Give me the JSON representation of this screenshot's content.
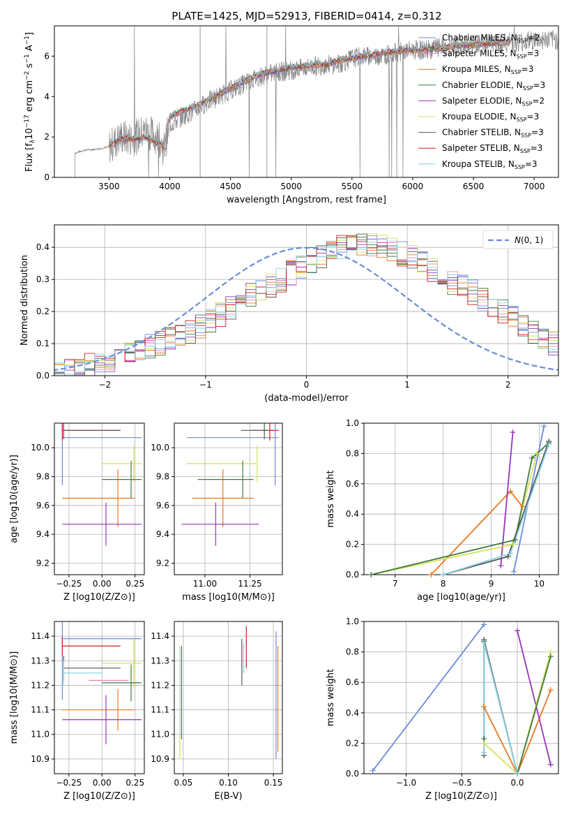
{
  "figure_title": "PLATE=1425, MJD=52913, FIBERID=0414, z=0.312",
  "colors": {
    "Chabrier MILES": "#6a8cd8",
    "Salpeter MILES": "#ee82b4",
    "Kroupa MILES": "#e87722",
    "Chabrier ELODIE": "#3f7a3f",
    "Salpeter ELODIE": "#9933bb",
    "Kroupa ELODIE": "#d6e05a",
    "Chabrier STELIB": "#555555",
    "Salpeter STELIB": "#cc1f1f",
    "Kroupa STELIB": "#88d4e6",
    "data": "#808080",
    "gaussian": "#6a8cd8"
  },
  "chart_data": [
    {
      "id": "spectrum",
      "type": "line",
      "title": "PLATE=1425, MJD=52913, FIBERID=0414, z=0.312",
      "xlabel": "wavelength [Angstrom, rest frame]",
      "ylabel": "Flux [f$_\\lambda$10$^{-17}$ erg cm$^{-2}$ s$^{-1}$ A$^{-1}$]",
      "ylabel_parts": {
        "a": "Flux [f",
        "b": "λ",
        "c": "10",
        "d": "−17",
        "e": " erg cm",
        "f": "−2",
        "g": " s",
        "h": "−1",
        "i": " A",
        "j": "−1",
        "k": "]"
      },
      "xlim": [
        3050,
        7200
      ],
      "ylim": [
        0,
        7.5
      ],
      "xticks": [
        3500,
        4000,
        4500,
        5000,
        5500,
        6000,
        6500,
        7000
      ],
      "yticks": [
        0,
        2,
        4,
        6
      ],
      "grid": false,
      "legend_position": "top-right",
      "legend": [
        {
          "label": "Chabrier MILES",
          "n": "2"
        },
        {
          "label": "Salpeter MILES",
          "n": "3"
        },
        {
          "label": "Kroupa MILES",
          "n": "3"
        },
        {
          "label": "Chabrier ELODIE",
          "n": "3"
        },
        {
          "label": "Salpeter ELODIE",
          "n": "2"
        },
        {
          "label": "Kroupa ELODIE",
          "n": "3"
        },
        {
          "label": "Chabrier STELIB",
          "n": "3"
        },
        {
          "label": "Salpeter STELIB",
          "n": "3"
        },
        {
          "label": "Kroupa STELIB",
          "n": "3"
        }
      ],
      "legend_n_prefix": "N",
      "legend_n_sub": "SSP",
      "data_x": [
        3220,
        3300,
        3400,
        3500,
        3600,
        3700,
        3800,
        3900,
        3950,
        4000,
        4100,
        4200,
        4300,
        4400,
        4500,
        4600,
        4700,
        4800,
        4900,
        5000,
        5100,
        5200,
        5300,
        5400,
        5500,
        5600,
        5700,
        5800,
        5900,
        6000,
        6100,
        6200,
        6300,
        6400,
        6500,
        6600,
        6700,
        6800,
        6900,
        7000,
        7100,
        7200
      ],
      "data_y": [
        1.2,
        1.35,
        1.4,
        1.5,
        2.0,
        1.9,
        2.3,
        2.0,
        1.4,
        2.6,
        3.0,
        3.3,
        3.7,
        4.0,
        4.3,
        4.6,
        4.9,
        5.1,
        5.2,
        5.3,
        5.4,
        5.5,
        5.6,
        5.6,
        5.9,
        6.0,
        6.0,
        6.1,
        6.2,
        6.3,
        6.3,
        6.4,
        6.4,
        6.5,
        6.6,
        6.6,
        6.6,
        6.7,
        6.7,
        6.8,
        6.8,
        6.8
      ],
      "model_x": [
        3500,
        3600,
        3700,
        3800,
        3900,
        3950,
        4000,
        4100,
        4200,
        4300,
        4400,
        4500,
        4600,
        4700,
        4800,
        4900,
        5000,
        5100,
        5200,
        5300,
        5400,
        5500,
        5600,
        5700,
        5800,
        5900,
        6000,
        6100,
        6200,
        6300,
        6400,
        6500,
        6600,
        6700,
        6800
      ],
      "model_y": [
        1.6,
        1.9,
        1.9,
        2.0,
        1.7,
        1.5,
        3.0,
        3.3,
        3.5,
        3.8,
        4.1,
        4.4,
        4.7,
        5.0,
        5.2,
        5.3,
        5.45,
        5.5,
        5.6,
        5.6,
        5.8,
        5.9,
        6.0,
        6.1,
        6.2,
        6.25,
        6.3,
        6.35,
        6.4,
        6.45,
        6.55,
        6.55,
        6.6,
        6.65,
        6.7
      ]
    },
    {
      "id": "residual_hist",
      "type": "line",
      "xlabel": "(data-model)/error",
      "ylabel": "Normed distribution",
      "xlim": [
        -2.5,
        2.5
      ],
      "ylim": [
        0,
        0.47
      ],
      "xticks": [
        -2,
        -1,
        0,
        1,
        2
      ],
      "yticks": [
        0.0,
        0.1,
        0.2,
        0.3,
        0.4
      ],
      "grid": true,
      "legend_position": "top-right",
      "legend": [
        {
          "label": "N(0,1)",
          "style": "dashed"
        }
      ],
      "bin_width": 0.1,
      "bin_start": -2.5,
      "hist_base": [
        0.01,
        0.02,
        0.02,
        0.03,
        0.04,
        0.05,
        0.06,
        0.07,
        0.08,
        0.09,
        0.1,
        0.11,
        0.12,
        0.14,
        0.15,
        0.17,
        0.19,
        0.21,
        0.23,
        0.25,
        0.27,
        0.28,
        0.3,
        0.32,
        0.34,
        0.36,
        0.37,
        0.38,
        0.4,
        0.4,
        0.41,
        0.41,
        0.4,
        0.39,
        0.38,
        0.37,
        0.35,
        0.33,
        0.31,
        0.29,
        0.28,
        0.26,
        0.24,
        0.22,
        0.2,
        0.18,
        0.16,
        0.14,
        0.12,
        0.1,
        0.09
      ],
      "hist_extra": [
        0.0,
        0.0,
        0.0,
        0.0,
        0.0,
        0.0,
        0.0,
        0.0,
        0.0,
        0.0,
        0.0,
        0.0,
        0.0,
        0.0,
        0.0,
        0.0,
        0.0,
        0.0,
        0.0,
        0.0,
        0.0,
        0.0,
        0.0,
        0.0,
        0.0,
        0.0,
        0.0,
        0.0,
        0.0,
        0.0,
        0.0,
        0.0,
        0.0,
        0.0,
        0.0,
        0.0,
        0.0,
        0.0,
        0.0,
        0.0,
        0.0,
        0.0,
        0.0,
        0.0,
        0.0,
        0.0,
        0.0,
        0.0,
        0.0,
        0.0,
        0.0
      ]
    },
    {
      "id": "age_vs_z",
      "type": "scatter",
      "xlabel": "Z [log10(Z/Z⊙)]",
      "ylabel": "age [log10(age/yr)]",
      "xlim": [
        -0.36,
        0.32
      ],
      "ylim": [
        9.12,
        10.17
      ],
      "xticks": [
        -0.25,
        0.0,
        0.25
      ],
      "xticklabels": [
        "−0.25",
        "0.00",
        "0.25"
      ],
      "yticks": [
        9.2,
        9.4,
        9.6,
        9.8,
        10.0
      ],
      "grid": true,
      "crosses": [
        {
          "series": "Chabrier MILES",
          "x": -0.3,
          "y": 10.07,
          "xerr": 0.0,
          "yerr": 0.66,
          "xmin": -0.3,
          "xmax": 0.3
        },
        {
          "series": "Kroupa MILES",
          "x": 0.12,
          "y": 9.65,
          "xerr": 0.0,
          "yerr": 0.4,
          "xmin": -0.3,
          "xmax": 0.25
        },
        {
          "series": "Salpeter ELODIE",
          "x": 0.03,
          "y": 9.47,
          "xerr": 0.0,
          "yerr": 0.3,
          "xmin": -0.3,
          "xmax": 0.3
        },
        {
          "series": "Kroupa ELODIE",
          "x": 0.24,
          "y": 9.89,
          "xerr": 0.0,
          "yerr": 0.25,
          "xmin": 0.0,
          "xmax": 0.3
        },
        {
          "series": "Chabrier ELODIE",
          "x": 0.22,
          "y": 9.78,
          "xerr": 0.0,
          "yerr": 0.26,
          "xmin": 0.0,
          "xmax": 0.3
        },
        {
          "series": "Salpeter STELIB",
          "x": -0.3,
          "y": 10.12,
          "xerr": 0.0,
          "yerr": 0.14,
          "xmin": -0.3,
          "xmax": 0.14
        },
        {
          "series": "Chabrier STELIB",
          "x": -0.29,
          "y": 10.12,
          "xerr": 0.0,
          "yerr": 0.12,
          "xmin": -0.29,
          "xmax": 0.14
        }
      ]
    },
    {
      "id": "age_vs_mass",
      "type": "scatter",
      "xlabel": "mass [log10(M/M⊙)]",
      "xlim": [
        10.83,
        11.43
      ],
      "ylim": [
        9.12,
        10.17
      ],
      "xticks": [
        11.0,
        11.25
      ],
      "xticklabels": [
        "11.00",
        "11.25"
      ],
      "yticks": [
        9.2,
        9.4,
        9.6,
        9.8,
        10.0
      ],
      "grid": true,
      "crosses": [
        {
          "series": "Chabrier MILES",
          "x": 11.39,
          "y": 10.07,
          "yerr": 0.66,
          "xmin": 10.9,
          "xmax": 11.41
        },
        {
          "series": "Kroupa MILES",
          "x": 11.1,
          "y": 9.65,
          "yerr": 0.4,
          "xmin": 10.93,
          "xmax": 11.27
        },
        {
          "series": "Salpeter ELODIE",
          "x": 11.06,
          "y": 9.47,
          "yerr": 0.3,
          "xmin": 10.87,
          "xmax": 11.3
        },
        {
          "series": "Kroupa ELODIE",
          "x": 11.29,
          "y": 9.89,
          "yerr": 0.25,
          "xmin": 10.9,
          "xmax": 11.29
        },
        {
          "series": "Chabrier ELODIE",
          "x": 11.21,
          "y": 9.78,
          "yerr": 0.26,
          "xmin": 10.96,
          "xmax": 11.27
        },
        {
          "series": "Salpeter STELIB",
          "x": 11.36,
          "y": 10.12,
          "yerr": 0.14,
          "xmin": 11.26,
          "xmax": 11.41
        },
        {
          "series": "Chabrier STELIB",
          "x": 11.33,
          "y": 10.12,
          "yerr": 0.12,
          "xmin": 11.2,
          "xmax": 11.38
        }
      ]
    },
    {
      "id": "weight_vs_age",
      "type": "line",
      "xlabel": "age [log10(age/yr)]",
      "ylabel": "mass weight",
      "xlim": [
        6.35,
        10.4
      ],
      "ylim": [
        0,
        1.0
      ],
      "xticks": [
        7,
        8,
        9,
        10
      ],
      "yticks": [
        0.0,
        0.2,
        0.4,
        0.6,
        0.8,
        1.0
      ],
      "grid": true,
      "series": [
        {
          "name": "Chabrier MILES",
          "x": [
            9.47,
            10.1
          ],
          "y": [
            0.02,
            0.98
          ]
        },
        {
          "name": "Kroupa MILES",
          "x": [
            7.75,
            9.4,
            9.65
          ],
          "y": [
            0.0,
            0.55,
            0.45
          ]
        },
        {
          "name": "Salpeter ELODIE",
          "x": [
            9.2,
            9.45
          ],
          "y": [
            0.06,
            0.94
          ]
        },
        {
          "name": "Kroupa ELODIE",
          "x": [
            6.5,
            9.45,
            9.95
          ],
          "y": [
            0.0,
            0.2,
            0.8
          ]
        },
        {
          "name": "Chabrier ELODIE",
          "x": [
            6.5,
            9.5,
            9.85,
            10.2
          ],
          "y": [
            0.0,
            0.23,
            0.77,
            0.87
          ]
        },
        {
          "name": "Chabrier STELIB",
          "x": [
            8.0,
            9.35,
            10.2
          ],
          "y": [
            0.0,
            0.12,
            0.88
          ]
        },
        {
          "name": "Kroupa STELIB",
          "x": [
            8.0,
            9.4,
            10.2
          ],
          "y": [
            0.0,
            0.14,
            0.86
          ]
        }
      ]
    },
    {
      "id": "mass_vs_z",
      "type": "scatter",
      "xlabel": "Z [log10(Z/Z⊙)]",
      "ylabel": "mass [log10(M/M⊙)]",
      "xlim": [
        -0.36,
        0.32
      ],
      "ylim": [
        10.84,
        11.46
      ],
      "xticks": [
        -0.25,
        0.0,
        0.25
      ],
      "xticklabels": [
        "−0.25",
        "0.00",
        "0.25"
      ],
      "yticks": [
        10.9,
        11.0,
        11.1,
        11.2,
        11.3,
        11.4
      ],
      "grid": true,
      "crosses": [
        {
          "series": "Chabrier MILES",
          "x": -0.3,
          "y": 11.39,
          "yerr": 0.5,
          "xmin": -0.3,
          "xmax": 0.3
        },
        {
          "series": "Kroupa MILES",
          "x": 0.12,
          "y": 11.1,
          "yerr": 0.17,
          "xmin": -0.3,
          "xmax": 0.25
        },
        {
          "series": "Salpeter ELODIE",
          "x": 0.03,
          "y": 11.06,
          "yerr": 0.2,
          "xmin": -0.3,
          "xmax": 0.3
        },
        {
          "series": "Kroupa ELODIE",
          "x": 0.24,
          "y": 11.29,
          "yerr": 0.2,
          "xmin": 0.0,
          "xmax": 0.3
        },
        {
          "series": "Chabrier ELODIE",
          "x": 0.22,
          "y": 11.21,
          "yerr": 0.15,
          "xmin": 0.0,
          "xmax": 0.3
        },
        {
          "series": "Salpeter STELIB",
          "x": -0.3,
          "y": 11.36,
          "yerr": 0.08,
          "xmin": -0.3,
          "xmax": 0.14
        },
        {
          "series": "Chabrier STELIB",
          "x": -0.29,
          "y": 11.27,
          "yerr": 0.1,
          "xmin": -0.29,
          "xmax": 0.14
        },
        {
          "series": "Salpeter MILES",
          "x": 0.05,
          "y": 11.22,
          "yerr": 0.0,
          "xmin": -0.1,
          "xmax": 0.2
        },
        {
          "series": "Kroupa STELIB",
          "x": -0.29,
          "y": 11.25,
          "yerr": 0.1,
          "xmin": -0.29,
          "xmax": 0.0
        }
      ]
    },
    {
      "id": "mass_vs_ebv",
      "type": "scatter",
      "xlabel": "E(B-V)",
      "xlim": [
        0.04,
        0.16
      ],
      "ylim": [
        10.84,
        11.46
      ],
      "xticks": [
        0.05,
        0.1,
        0.15
      ],
      "xticklabels": [
        "0.05",
        "0.10",
        "0.15"
      ],
      "yticks": [
        10.9,
        11.0,
        11.1,
        11.2,
        11.3,
        11.4
      ],
      "grid": true,
      "vlines": [
        {
          "series": "Kroupa ELODIE",
          "x": 0.046,
          "ymin": 10.9,
          "ymax": 11.36
        },
        {
          "series": "Chabrier ELODIE",
          "x": 0.048,
          "ymin": 10.98,
          "ymax": 11.36
        },
        {
          "series": "Chabrier STELIB",
          "x": 0.115,
          "ymin": 11.2,
          "ymax": 11.39
        },
        {
          "series": "Kroupa STELIB",
          "x": 0.117,
          "ymin": 11.25,
          "ymax": 11.37
        },
        {
          "series": "Salpeter STELIB",
          "x": 0.12,
          "ymin": 11.27,
          "ymax": 11.44
        },
        {
          "series": "Chabrier MILES",
          "x": 0.153,
          "ymin": 10.9,
          "ymax": 11.42
        },
        {
          "series": "Kroupa MILES",
          "x": 0.155,
          "ymin": 10.93,
          "ymax": 11.36
        }
      ]
    },
    {
      "id": "weight_vs_z",
      "type": "line",
      "xlabel": "Z [log10(Z/Z⊙)]",
      "ylabel": "mass weight",
      "xlim": [
        -1.38,
        0.37
      ],
      "ylim": [
        0,
        1.0
      ],
      "xticks": [
        -1.0,
        -0.5,
        0.0
      ],
      "xticklabels": [
        "−1.0",
        "−0.5",
        "0.0"
      ],
      "yticks": [
        0.0,
        0.2,
        0.4,
        0.6,
        0.8,
        1.0
      ],
      "grid": true,
      "series": [
        {
          "name": "Chabrier MILES",
          "x": [
            -1.3,
            -0.3
          ],
          "y": [
            0.02,
            0.98
          ]
        },
        {
          "name": "Kroupa MILES",
          "x": [
            -0.3,
            0.0,
            0.3
          ],
          "y": [
            0.44,
            0.0,
            0.55
          ]
        },
        {
          "name": "Salpeter ELODIE",
          "x": [
            0.0,
            0.3
          ],
          "y": [
            0.94,
            0.06
          ]
        },
        {
          "name": "Kroupa ELODIE",
          "x": [
            -0.3,
            0.0,
            0.3
          ],
          "y": [
            0.2,
            0.0,
            0.8
          ]
        },
        {
          "name": "Chabrier ELODIE",
          "x": [
            -0.3,
            -0.3,
            0.0,
            0.3
          ],
          "y": [
            0.23,
            0.87,
            0.0,
            0.77
          ]
        },
        {
          "name": "Chabrier STELIB",
          "x": [
            -0.3,
            -0.3,
            0.0
          ],
          "y": [
            0.12,
            0.88,
            0.0
          ]
        },
        {
          "name": "Kroupa STELIB",
          "x": [
            -0.3,
            -0.3,
            0.0
          ],
          "y": [
            0.14,
            0.86,
            0.0
          ]
        }
      ]
    }
  ]
}
